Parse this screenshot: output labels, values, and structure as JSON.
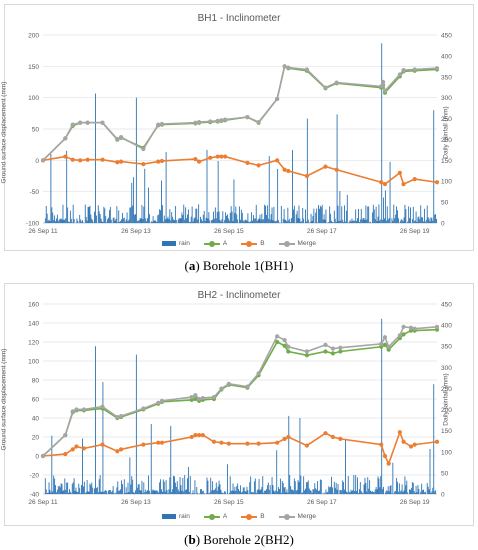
{
  "chart_data": [
    {
      "type": "line",
      "title": "BH1 - Inclinometer",
      "ylabel": "Ground surface displacement (mm)",
      "y2label": "Daily rainfall (mm)",
      "ylim": [
        -100,
        200
      ],
      "yticks": [
        -100,
        -50,
        0,
        50,
        100,
        150,
        200
      ],
      "y2lim": [
        0,
        450
      ],
      "y2ticks": [
        0,
        50,
        100,
        150,
        200,
        250,
        300,
        350,
        400,
        450
      ],
      "xlim": [
        0,
        100
      ],
      "xticks": [
        {
          "x": 0,
          "label": "26 Sep 11"
        },
        {
          "x": 25,
          "label": "26 Sep 13"
        },
        {
          "x": 50,
          "label": "26 Sep 15"
        },
        {
          "x": 75,
          "label": "26 Sep 17"
        },
        {
          "x": 100,
          "label": "26 Sep 19"
        }
      ],
      "legend": [
        "rain",
        "A",
        "B",
        "Merge"
      ],
      "grid": true,
      "series": [
        {
          "name": "A",
          "color": "#70ad47",
          "x": [
            0,
            6,
            8,
            10,
            12,
            16,
            20,
            21,
            27,
            31,
            32,
            41,
            42,
            45,
            47,
            48,
            49,
            55,
            58,
            63,
            65,
            66,
            71,
            76,
            79,
            91,
            91.5,
            92,
            96,
            97,
            100,
            106
          ],
          "y": [
            0,
            35,
            55,
            60,
            60,
            60,
            33,
            36,
            20,
            56,
            57,
            59,
            60,
            61,
            62,
            63,
            64,
            69,
            60,
            98,
            150,
            147,
            143,
            115,
            123,
            116,
            120,
            108,
            134,
            142,
            143,
            145
          ]
        },
        {
          "name": "B",
          "color": "#ed7d31",
          "x": [
            0,
            6,
            8,
            10,
            12,
            16,
            20,
            21,
            27,
            31,
            32,
            41,
            42,
            45,
            47,
            48,
            49,
            55,
            58,
            63,
            65,
            66,
            71,
            76,
            79,
            91,
            92,
            96,
            97,
            100,
            106
          ],
          "y": [
            0,
            6,
            1,
            0,
            1,
            1,
            -3,
            -2,
            -6,
            -2,
            -1,
            2,
            -2,
            4,
            6,
            6,
            6,
            -4,
            -8,
            0,
            -15,
            -17,
            -25,
            -10,
            -15,
            -35,
            -38,
            -20,
            -38,
            -30,
            -35
          ]
        },
        {
          "name": "Merge",
          "color": "#a5a5a5",
          "x": [
            0,
            6,
            8,
            10,
            12,
            16,
            20,
            21,
            27,
            31,
            32,
            41,
            42,
            45,
            47,
            48,
            49,
            55,
            58,
            63,
            65,
            66,
            71,
            76,
            79,
            91,
            91.5,
            92,
            96,
            97,
            100,
            106
          ],
          "y": [
            0,
            35,
            57,
            60,
            60,
            60,
            34,
            37,
            18,
            57,
            58,
            60,
            61,
            62,
            63,
            64,
            65,
            69,
            61,
            98,
            150,
            148,
            145,
            116,
            124,
            118,
            125,
            111,
            137,
            144,
            145,
            147
          ]
        }
      ]
    },
    {
      "type": "line",
      "title": "BH2 - Inclinometer",
      "ylabel": "Ground surface displacement (mm)",
      "y2label": "Daily rainfall (mm)",
      "ylim": [
        -40,
        160
      ],
      "yticks": [
        -40,
        -20,
        0,
        20,
        40,
        60,
        80,
        100,
        120,
        140,
        160
      ],
      "y2lim": [
        0,
        450
      ],
      "y2ticks": [
        0,
        50,
        100,
        150,
        200,
        250,
        300,
        350,
        400,
        450
      ],
      "xlim": [
        0,
        100
      ],
      "xticks": [
        {
          "x": 0,
          "label": "26 Sep 11"
        },
        {
          "x": 25,
          "label": "26 Sep 13"
        },
        {
          "x": 50,
          "label": "26 Sep 15"
        },
        {
          "x": 75,
          "label": "26 Sep 17"
        },
        {
          "x": 100,
          "label": "26 Sep 19"
        }
      ],
      "legend": [
        "rain",
        "A",
        "B",
        "Merge"
      ],
      "grid": true,
      "series": [
        {
          "name": "A",
          "color": "#70ad47",
          "x": [
            0,
            6,
            8,
            9,
            11,
            16,
            20,
            21,
            27,
            31,
            32,
            40,
            41,
            42,
            43,
            46,
            48,
            50,
            55,
            58,
            63,
            65,
            66,
            71,
            76,
            78,
            80,
            91,
            92,
            93,
            96,
            97,
            99,
            100,
            106
          ],
          "y": [
            0,
            22,
            46,
            48,
            48,
            50,
            40,
            41,
            49,
            55,
            57,
            59,
            60,
            58,
            59,
            60,
            70,
            75,
            72,
            85,
            120,
            116,
            110,
            106,
            110,
            108,
            110,
            115,
            117,
            112,
            124,
            128,
            132,
            132,
            133
          ]
        },
        {
          "name": "B",
          "color": "#ed7d31",
          "x": [
            0,
            6,
            8,
            9,
            11,
            16,
            20,
            21,
            27,
            31,
            32,
            40,
            41,
            42,
            43,
            46,
            48,
            50,
            55,
            58,
            63,
            65,
            66,
            71,
            76,
            78,
            80,
            91,
            92,
            93,
            96,
            97,
            99,
            100,
            106
          ],
          "y": [
            0,
            2,
            7,
            10,
            8,
            12,
            5,
            7,
            12,
            14,
            14,
            20,
            22,
            22,
            22,
            15,
            14,
            13,
            13,
            13,
            14,
            18,
            20,
            11,
            24,
            20,
            18,
            12,
            0,
            -8,
            25,
            15,
            10,
            12,
            15
          ]
        },
        {
          "name": "Merge",
          "color": "#a5a5a5",
          "x": [
            0,
            6,
            8,
            9,
            11,
            16,
            20,
            21,
            27,
            31,
            32,
            40,
            41,
            42,
            43,
            46,
            48,
            50,
            55,
            58,
            63,
            65,
            66,
            71,
            76,
            78,
            80,
            91,
            92,
            93,
            96,
            97,
            99,
            100,
            106
          ],
          "y": [
            0,
            22,
            47,
            49,
            49,
            52,
            41,
            42,
            50,
            56,
            58,
            62,
            64,
            60,
            61,
            62,
            71,
            76,
            73,
            87,
            126,
            122,
            115,
            110,
            117,
            113,
            114,
            118,
            125,
            115,
            127,
            136,
            135,
            134,
            136
          ]
        }
      ]
    }
  ],
  "captions": [
    {
      "letter": "a",
      "text": ") Borehole 1(BH1)"
    },
    {
      "letter": "b",
      "text": ") Borehole 2(BH2)"
    }
  ],
  "colors": {
    "rain": "#2e75b6",
    "grid": "#e0e0e0",
    "axis_text": "#595959"
  }
}
